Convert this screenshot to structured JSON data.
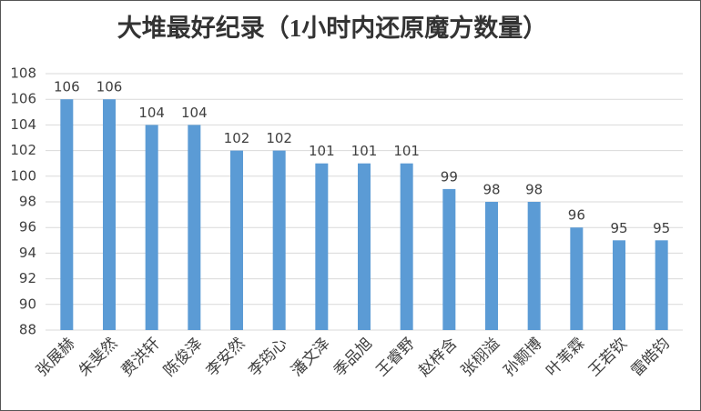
{
  "chart_data": {
    "type": "bar",
    "title": "大堆最好纪录（1小时内还原魔方数量）",
    "categories": [
      "张展赫",
      "朱斐然",
      "费洪轩",
      "陈俊泽",
      "李安然",
      "李筠心",
      "潘文泽",
      "季品旭",
      "王睿野",
      "赵梓含",
      "张栩溢",
      "孙颢博",
      "叶苇霖",
      "王若钦",
      "雷皓钧"
    ],
    "values": [
      106,
      106,
      104,
      104,
      102,
      102,
      101,
      101,
      101,
      99,
      98,
      98,
      96,
      95,
      95
    ],
    "color": "#5b9bd5",
    "ylim": [
      88,
      108
    ],
    "yticks": [
      88,
      90,
      92,
      94,
      96,
      98,
      100,
      102,
      104,
      106,
      108
    ],
    "grid": true
  }
}
